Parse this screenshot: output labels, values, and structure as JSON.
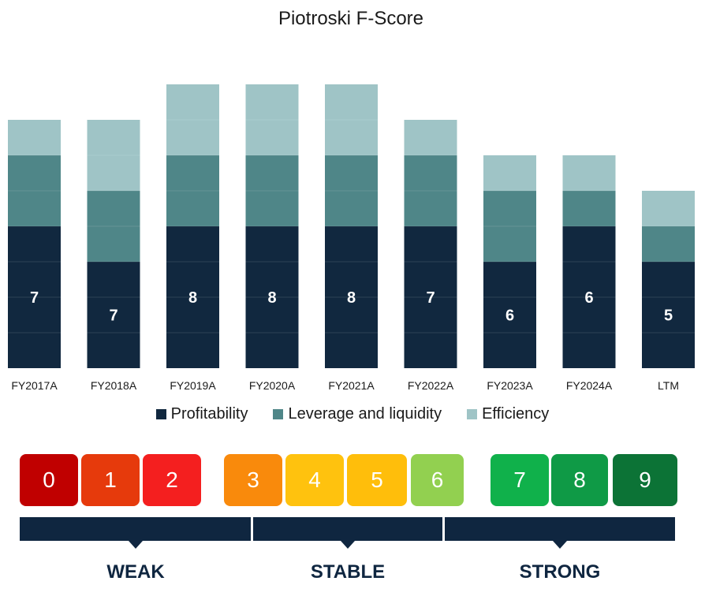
{
  "chart_data": {
    "type": "bar",
    "stacked": true,
    "title": "Piotroski F-Score",
    "categories": [
      "FY2017A",
      "FY2018A",
      "FY2019A",
      "FY2020A",
      "FY2021A",
      "FY2022A",
      "FY2023A",
      "FY2024A",
      "LTM"
    ],
    "series": [
      {
        "name": "Profitability",
        "color": "#11283f",
        "values": [
          4,
          3,
          4,
          4,
          4,
          4,
          3,
          4,
          3
        ]
      },
      {
        "name": "Leverage and liquidity",
        "color": "#4f8688",
        "values": [
          2,
          2,
          2,
          2,
          2,
          2,
          2,
          1,
          1
        ]
      },
      {
        "name": "Efficiency",
        "color": "#9fc4c6",
        "values": [
          1,
          2,
          2,
          2,
          2,
          1,
          1,
          1,
          1
        ]
      }
    ],
    "score_labels": [
      "7",
      "7",
      "8",
      "8",
      "8",
      "7",
      "6",
      "6",
      "5"
    ],
    "ylim": [
      0,
      9
    ],
    "legend_position": "bottom"
  },
  "scale": {
    "scores": [
      {
        "label": "0",
        "color": "#c00000"
      },
      {
        "label": "1",
        "color": "#e63a0c"
      },
      {
        "label": "2",
        "color": "#f41f1f"
      },
      {
        "label": "3",
        "color": "#f98a0c"
      },
      {
        "label": "4",
        "color": "#ffc20e"
      },
      {
        "label": "5",
        "color": "#ffbe0b"
      },
      {
        "label": "6",
        "color": "#92d050"
      },
      {
        "label": "7",
        "color": "#10b14b"
      },
      {
        "label": "8",
        "color": "#0f9a46"
      },
      {
        "label": "9",
        "color": "#0c7336"
      }
    ],
    "bands": [
      {
        "label": "WEAK"
      },
      {
        "label": "STABLE"
      },
      {
        "label": "STRONG"
      }
    ]
  }
}
